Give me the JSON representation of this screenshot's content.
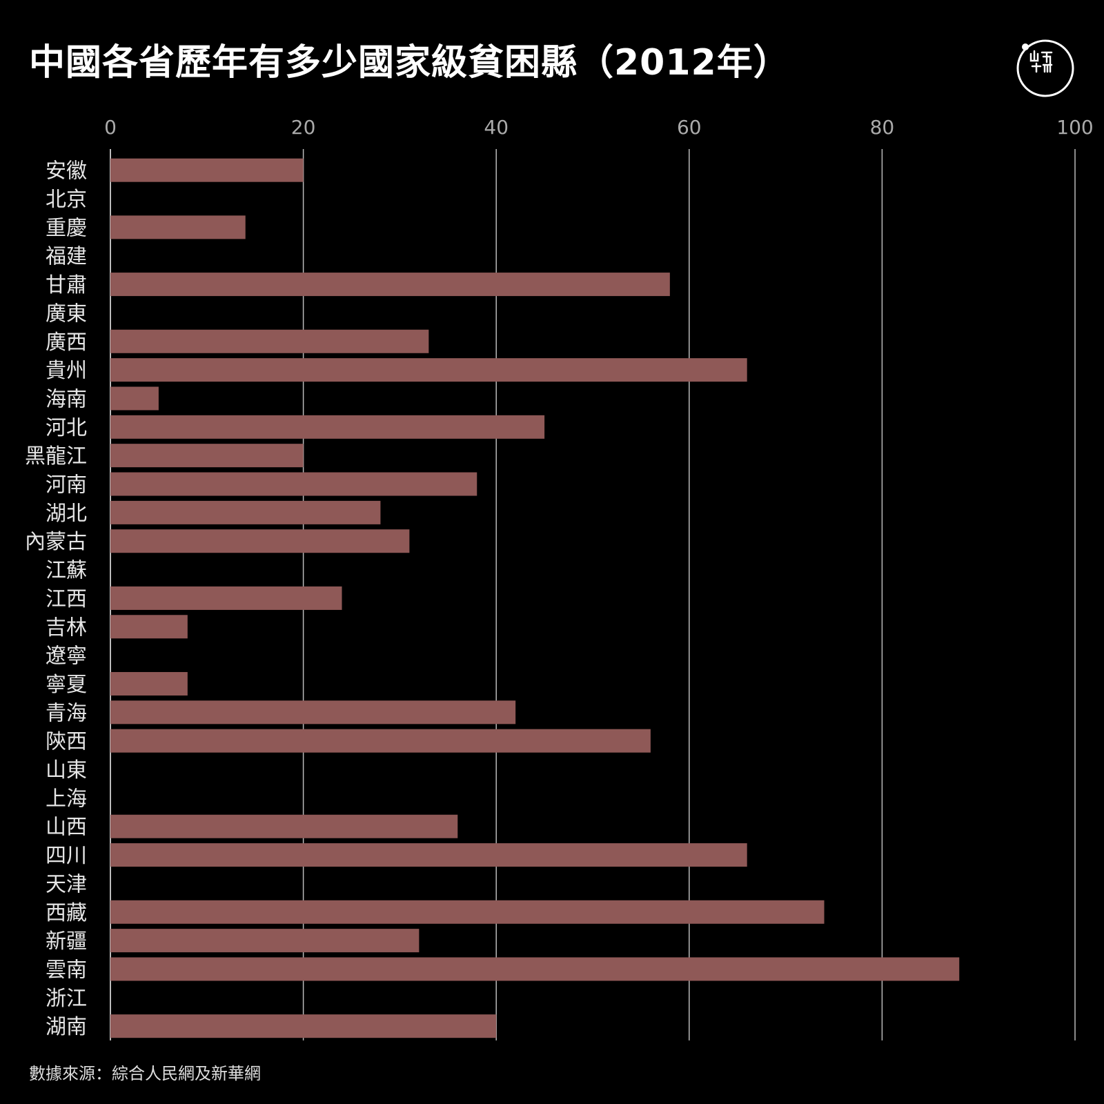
{
  "header": {
    "title": "中國各省歷年有多少國家級貧困縣（2012年）"
  },
  "footer": {
    "source": "數據來源：綜合人民網及新華網"
  },
  "logo": {
    "icon": "initium-logo-icon"
  },
  "colors": {
    "background": "#000000",
    "bar": "#8f5957",
    "grid": "#bbbbbb",
    "text": "#ffffff"
  },
  "chart_data": {
    "type": "bar",
    "orientation": "horizontal",
    "title": "中國各省歷年有多少國家級貧困縣（2012年）",
    "xlim": [
      0,
      100
    ],
    "xticks": [
      0,
      20,
      40,
      60,
      80,
      100
    ],
    "grid": true,
    "categories": [
      "安徽",
      "北京",
      "重慶",
      "福建",
      "甘肅",
      "廣東",
      "廣西",
      "貴州",
      "海南",
      "河北",
      "黑龍江",
      "河南",
      "湖北",
      "內蒙古",
      "江蘇",
      "江西",
      "吉林",
      "遼寧",
      "寧夏",
      "青海",
      "陝西",
      "山東",
      "上海",
      "山西",
      "四川",
      "天津",
      "西藏",
      "新疆",
      "雲南",
      "浙江",
      "湖南"
    ],
    "values": [
      20,
      0,
      14,
      0,
      58,
      0,
      33,
      66,
      5,
      45,
      20,
      38,
      28,
      31,
      0,
      24,
      8,
      0,
      8,
      42,
      56,
      0,
      0,
      36,
      66,
      0,
      74,
      32,
      88,
      0,
      40
    ]
  }
}
